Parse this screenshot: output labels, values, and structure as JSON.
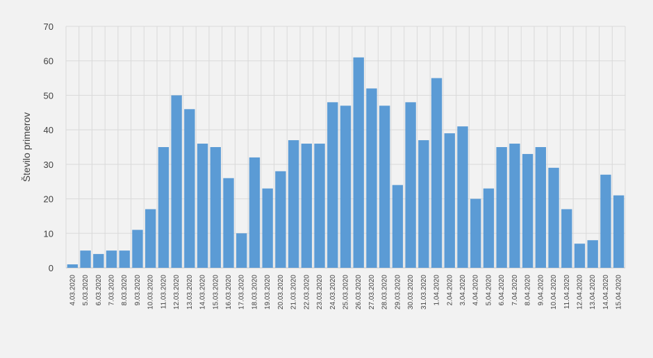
{
  "chart_data": {
    "type": "bar",
    "title": "",
    "xlabel": "",
    "ylabel": "Število primerov",
    "ylim": [
      0,
      70
    ],
    "yticks": [
      0,
      10,
      20,
      30,
      40,
      50,
      60,
      70
    ],
    "grid": true,
    "bar_color": "#5b9bd5",
    "background_color": "#f2f2f2",
    "categories": [
      "4.03.2020",
      "5.03.2020",
      "6.03.2020",
      "7.03.2020",
      "8.03.2020",
      "9.03.2020",
      "10.03.2020",
      "11.03.2020",
      "12.03.2020",
      "13.03.2020",
      "14.03.2020",
      "15.03.2020",
      "16.03.2020",
      "17.03.2020",
      "18.03.2020",
      "19.03.2020",
      "20.03.2020",
      "21.03.2020",
      "22.03.2020",
      "23.03.2020",
      "24.03.2020",
      "25.03.2020",
      "26.03.2020",
      "27.03.2020",
      "28.03.2020",
      "29.03.2020",
      "30.03.2020",
      "31.03.2020",
      "1.04.2020",
      "2.04.2020",
      "3.04.2020",
      "4.04.2020",
      "5.04.2020",
      "6.04.2020",
      "7.04.2020",
      "8.04.2020",
      "9.04.2020",
      "10.04.2020",
      "11.04.2020",
      "12.04.2020",
      "13.04.2020",
      "14.04.2020",
      "15.04.2020"
    ],
    "values": [
      1,
      5,
      4,
      5,
      5,
      11,
      17,
      35,
      50,
      46,
      36,
      35,
      26,
      10,
      32,
      23,
      28,
      37,
      36,
      36,
      48,
      47,
      61,
      52,
      47,
      24,
      48,
      37,
      55,
      39,
      41,
      20,
      23,
      35,
      36,
      33,
      35,
      29,
      17,
      7,
      8,
      27,
      21
    ]
  }
}
